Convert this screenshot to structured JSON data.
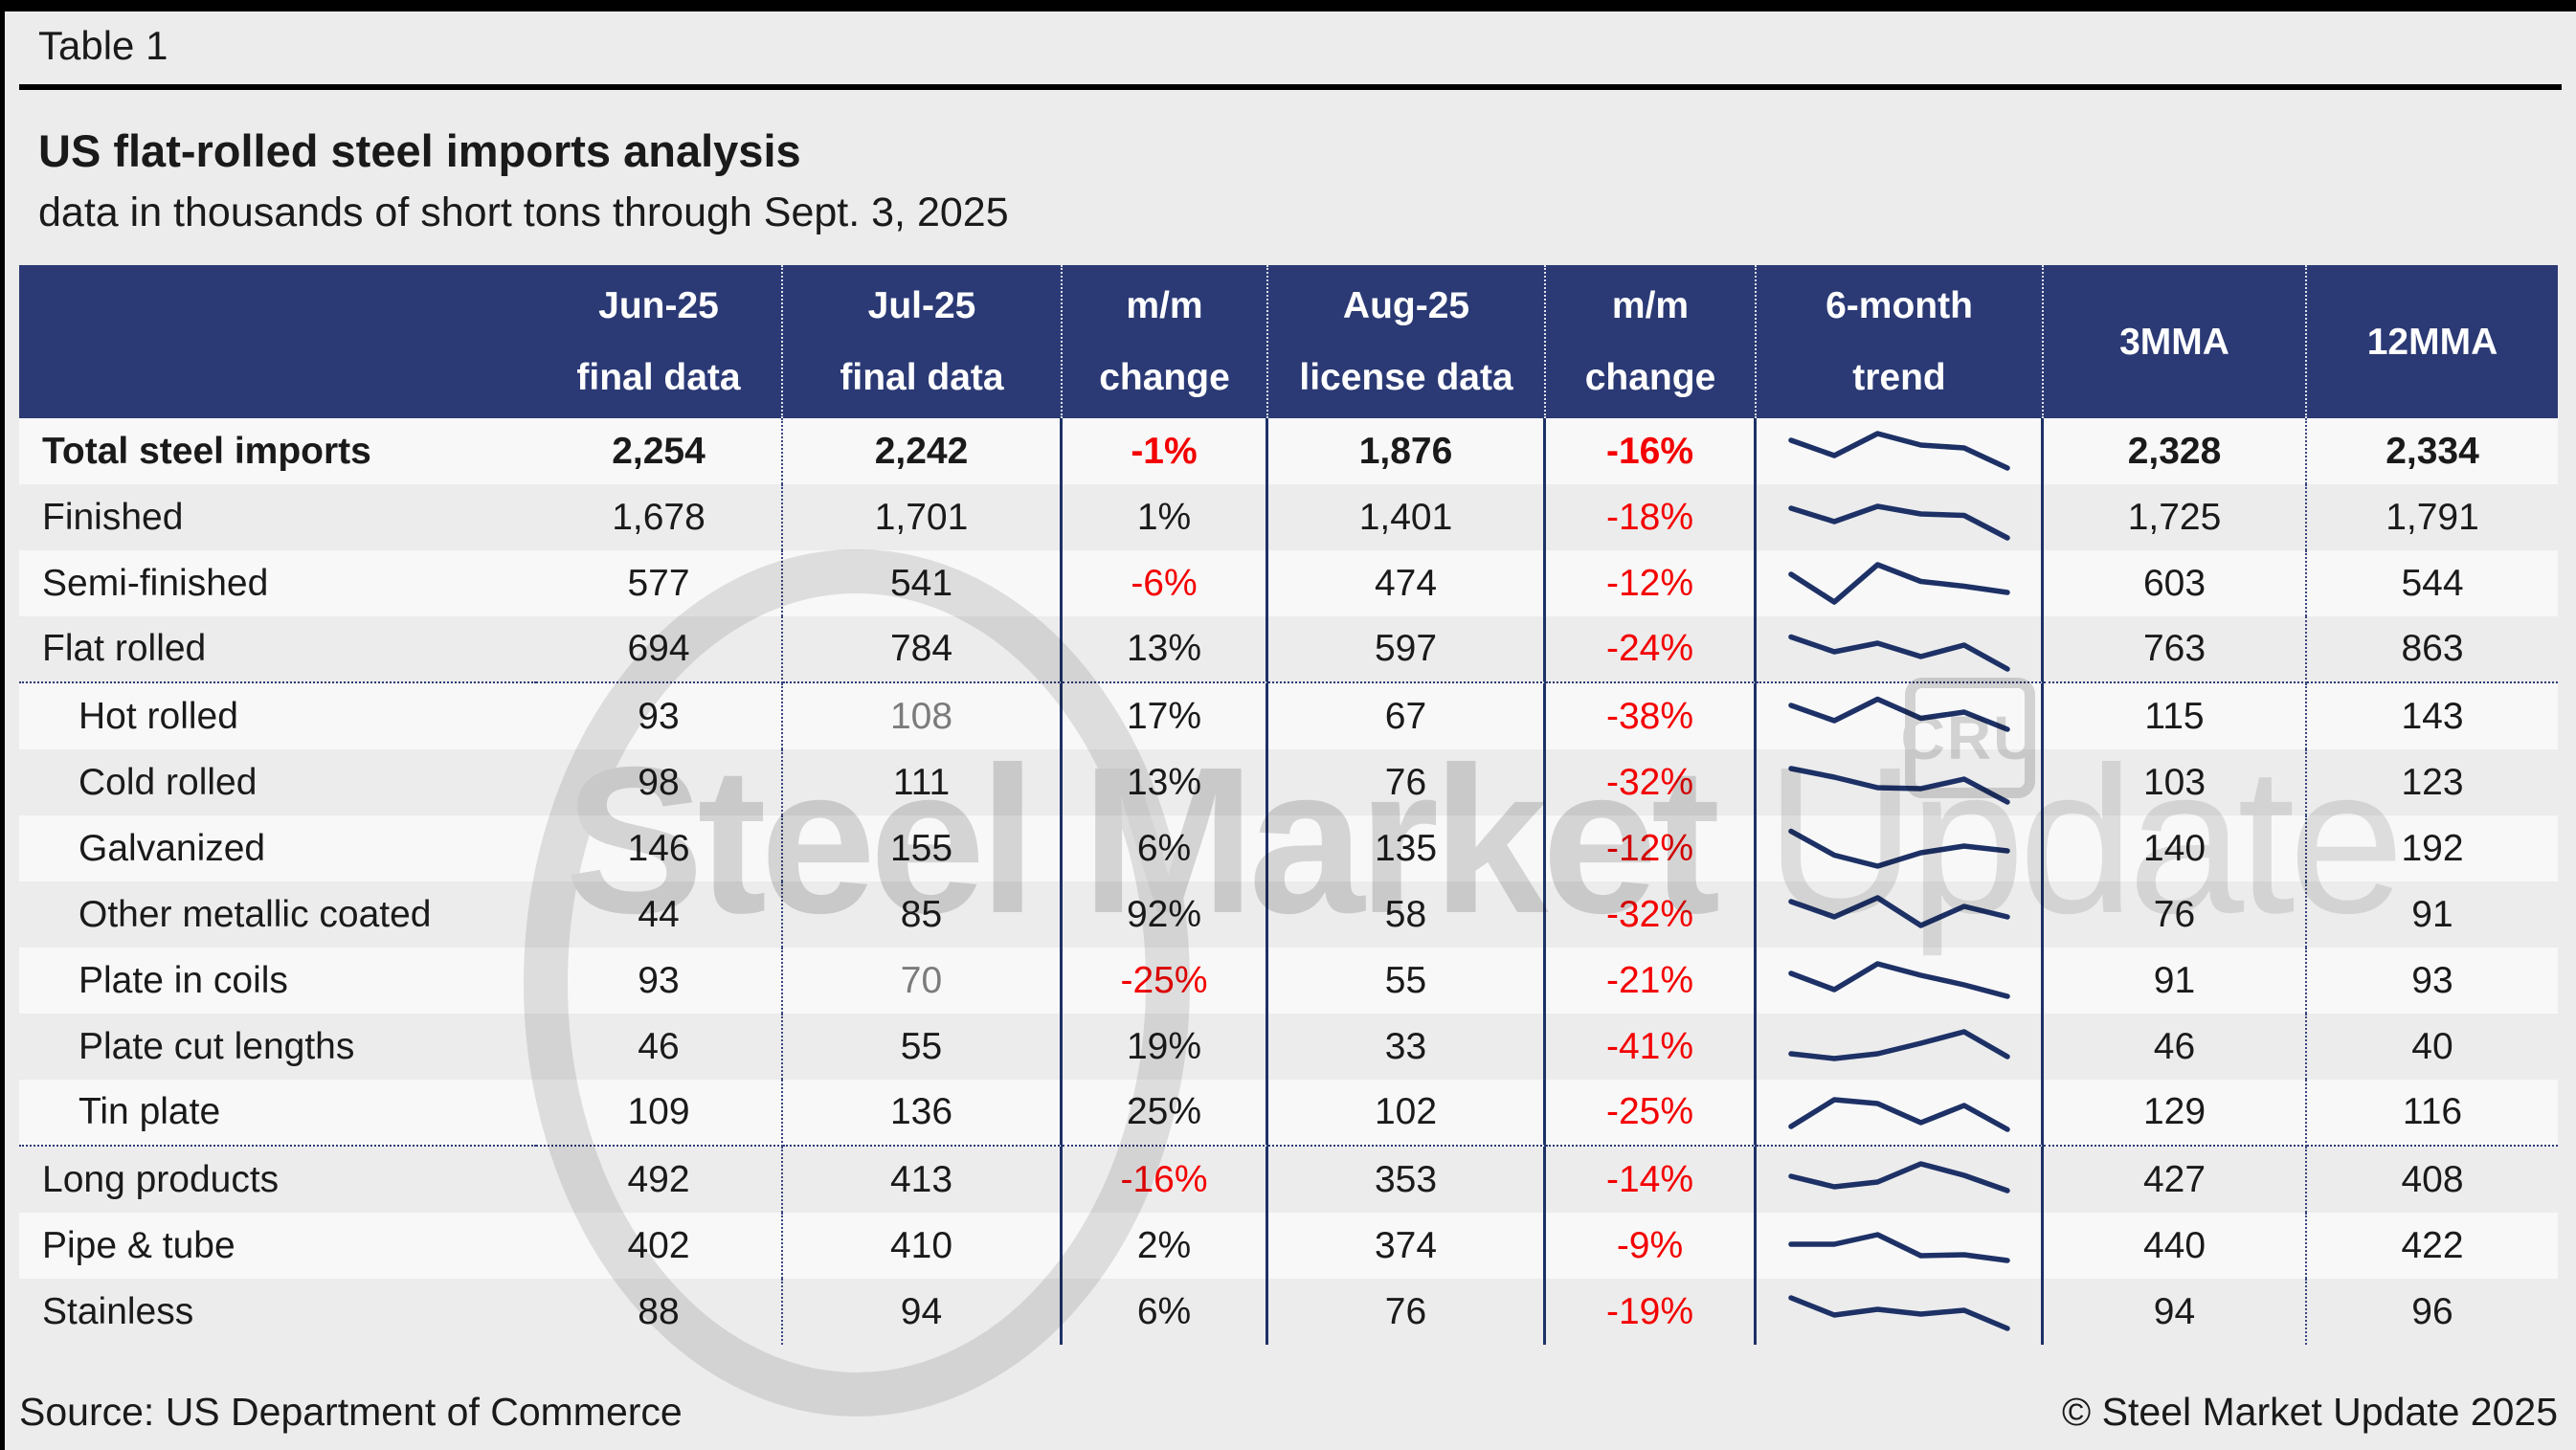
{
  "theme": {
    "navy": "#2b3a75",
    "solid_line": "#1d3166",
    "red_negative": "#f40000",
    "muted_gray": "#7b7b7b",
    "stripe_white": "#f8f8f8",
    "stripe_gray": "#ececec",
    "spark_color": "#1d3166",
    "watermark_gray": "#dadada"
  },
  "header": {
    "tab": "Table 1",
    "title": "US flat-rolled steel imports analysis",
    "subtitle": "data in thousands of short tons through Sept. 3, 2025"
  },
  "footer": {
    "source": "Source: US Department of Commerce",
    "copyright": "© Steel Market Update 2025"
  },
  "watermark": {
    "bold": "Steel Market",
    "light": " Update",
    "cru": "CRU"
  },
  "chart_data": {
    "type": "table",
    "title": "US flat-rolled steel imports analysis",
    "subtitle": "data in thousands of short tons through Sept. 3, 2025",
    "header_lines": [
      [
        "",
        ""
      ],
      [
        "Jun-25",
        "final data"
      ],
      [
        "Jul-25",
        "final data"
      ],
      [
        "m/m",
        "change"
      ],
      [
        "Aug-25",
        "license data"
      ],
      [
        "m/m",
        "change"
      ],
      [
        "6-month",
        "trend"
      ],
      [
        "3MMA",
        ""
      ],
      [
        "12MMA",
        ""
      ]
    ],
    "trend_note": "sparkline values are relative heights 0-100 over 6 months",
    "rows": [
      {
        "label": "Total steel imports",
        "indent": false,
        "bold": true,
        "jun": "2,254",
        "jul": "2,242",
        "jul_muted": false,
        "mm1": "-1%",
        "aug": "1,876",
        "mm2": "-16%",
        "trend": [
          74,
          42,
          88,
          64,
          58,
          16
        ],
        "mma3": "2,328",
        "mma12": "2,334",
        "group_end": false
      },
      {
        "label": "Finished",
        "indent": false,
        "bold": false,
        "jun": "1,678",
        "jul": "1,701",
        "jul_muted": false,
        "mm1": "1%",
        "aug": "1,401",
        "mm2": "-18%",
        "trend": [
          70,
          42,
          74,
          58,
          55,
          8
        ],
        "mma3": "1,725",
        "mma12": "1,791",
        "group_end": false
      },
      {
        "label": "Semi-finished",
        "indent": false,
        "bold": false,
        "jun": "577",
        "jul": "541",
        "jul_muted": false,
        "mm1": "-6%",
        "aug": "474",
        "mm2": "-12%",
        "trend": [
          70,
          12,
          90,
          55,
          45,
          32
        ],
        "mma3": "603",
        "mma12": "544",
        "group_end": false
      },
      {
        "label": "Flat rolled",
        "indent": false,
        "bold": false,
        "jun": "694",
        "jul": "784",
        "jul_muted": false,
        "mm1": "13%",
        "aug": "597",
        "mm2": "-24%",
        "trend": [
          75,
          44,
          62,
          34,
          58,
          8
        ],
        "mma3": "763",
        "mma12": "863",
        "group_end": true
      },
      {
        "label": "Hot rolled",
        "indent": true,
        "bold": false,
        "jun": "93",
        "jul": "108",
        "jul_muted": true,
        "mm1": "17%",
        "aug": "67",
        "mm2": "-38%",
        "trend": [
          72,
          40,
          85,
          45,
          58,
          22
        ],
        "mma3": "115",
        "mma12": "143",
        "group_end": false
      },
      {
        "label": "Cold rolled",
        "indent": true,
        "bold": false,
        "jun": "98",
        "jul": "111",
        "jul_muted": false,
        "mm1": "13%",
        "aug": "76",
        "mm2": "-32%",
        "trend": [
          78,
          60,
          38,
          36,
          56,
          8
        ],
        "mma3": "103",
        "mma12": "123",
        "group_end": false
      },
      {
        "label": "Galvanized",
        "indent": true,
        "bold": false,
        "jun": "146",
        "jul": "155",
        "jul_muted": false,
        "mm1": "6%",
        "aug": "135",
        "mm2": "-12%",
        "trend": [
          85,
          35,
          12,
          40,
          54,
          44
        ],
        "mma3": "140",
        "mma12": "192",
        "group_end": false
      },
      {
        "label": "Other metallic coated",
        "indent": true,
        "bold": false,
        "jun": "44",
        "jul": "85",
        "jul_muted": false,
        "mm1": "92%",
        "aug": "58",
        "mm2": "-32%",
        "trend": [
          78,
          46,
          86,
          28,
          68,
          46
        ],
        "mma3": "76",
        "mma12": "91",
        "group_end": false
      },
      {
        "label": "Plate in coils",
        "indent": true,
        "bold": false,
        "jun": "93",
        "jul": "70",
        "jul_muted": true,
        "mm1": "-25%",
        "aug": "55",
        "mm2": "-21%",
        "trend": [
          66,
          32,
          86,
          62,
          42,
          18
        ],
        "mma3": "91",
        "mma12": "93",
        "group_end": false
      },
      {
        "label": "Plate cut lengths",
        "indent": true,
        "bold": false,
        "jun": "46",
        "jul": "55",
        "jul_muted": false,
        "mm1": "19%",
        "aug": "33",
        "mm2": "-41%",
        "trend": [
          36,
          26,
          36,
          58,
          82,
          30
        ],
        "mma3": "46",
        "mma12": "40",
        "group_end": false
      },
      {
        "label": "Tin plate",
        "indent": true,
        "bold": false,
        "jun": "109",
        "jul": "136",
        "jul_muted": false,
        "mm1": "25%",
        "aug": "102",
        "mm2": "-25%",
        "trend": [
          20,
          76,
          68,
          28,
          64,
          14
        ],
        "mma3": "129",
        "mma12": "116",
        "group_end": true
      },
      {
        "label": "Long products",
        "indent": false,
        "bold": false,
        "jun": "492",
        "jul": "413",
        "jul_muted": false,
        "mm1": "-16%",
        "aug": "353",
        "mm2": "-14%",
        "trend": [
          56,
          34,
          44,
          82,
          58,
          26
        ],
        "mma3": "427",
        "mma12": "408",
        "group_end": false
      },
      {
        "label": "Pipe & tube",
        "indent": false,
        "bold": false,
        "jun": "402",
        "jul": "410",
        "jul_muted": false,
        "mm1": "2%",
        "aug": "374",
        "mm2": "-9%",
        "trend": [
          52,
          52,
          72,
          28,
          30,
          18
        ],
        "mma3": "440",
        "mma12": "422",
        "group_end": false
      },
      {
        "label": "Stainless",
        "indent": false,
        "bold": false,
        "jun": "88",
        "jul": "94",
        "jul_muted": false,
        "mm1": "6%",
        "aug": "76",
        "mm2": "-19%",
        "trend": [
          78,
          42,
          54,
          44,
          52,
          14
        ],
        "mma3": "94",
        "mma12": "96",
        "group_end": false
      }
    ]
  }
}
